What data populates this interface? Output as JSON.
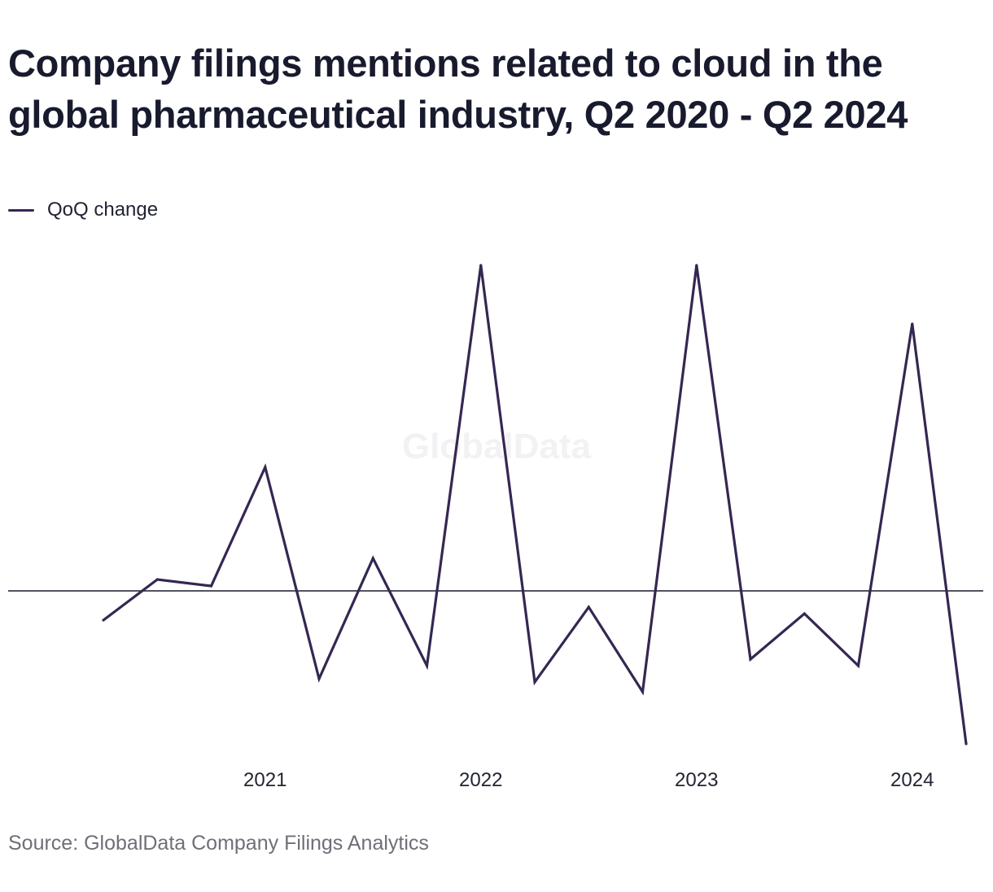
{
  "title": "Company filings mentions related to cloud in the global pharmaceutical industry, Q2 2020 - Q2 2024",
  "legend": {
    "label": "QoQ change"
  },
  "watermark": "GlobalData",
  "source": "Source: GlobalData Company Filings Analytics",
  "colors": {
    "line": "#352752",
    "axis": "#181a2e",
    "text": "#222433",
    "source": "#6f6f78"
  },
  "chart_data": {
    "type": "line",
    "x": [
      "Q2 2020",
      "Q3 2020",
      "Q4 2020",
      "Q1 2021",
      "Q2 2021",
      "Q3 2021",
      "Q4 2021",
      "Q1 2022",
      "Q2 2022",
      "Q3 2022",
      "Q4 2022",
      "Q1 2023",
      "Q2 2023",
      "Q3 2023",
      "Q4 2023",
      "Q1 2024",
      "Q2 2024"
    ],
    "x_tick_labels": [
      {
        "label": "2021",
        "at": "Q1 2021"
      },
      {
        "label": "2022",
        "at": "Q1 2022"
      },
      {
        "label": "2023",
        "at": "Q1 2023"
      },
      {
        "label": "2024",
        "at": "Q1 2024"
      }
    ],
    "series": [
      {
        "name": "QoQ change",
        "values": [
          -9,
          3.5,
          1.5,
          38,
          -27,
          10,
          -23,
          100,
          -28,
          -5,
          -31,
          100,
          -21,
          -7,
          -23,
          82,
          -47
        ]
      }
    ],
    "ylim": [
      -50,
      100
    ],
    "zero_line": true,
    "grid": false,
    "legend_position": "top-left"
  }
}
